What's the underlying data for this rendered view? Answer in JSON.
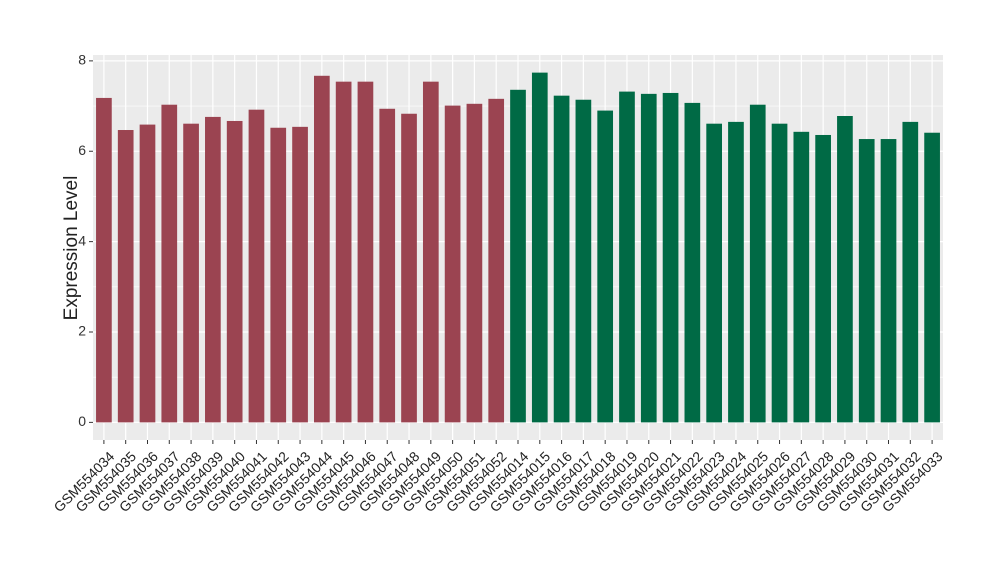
{
  "chart_data": {
    "type": "bar",
    "y_label": "Expression Level",
    "categories": [
      "GSM554034",
      "GSM554035",
      "GSM554036",
      "GSM554037",
      "GSM554038",
      "GSM554039",
      "GSM554040",
      "GSM554041",
      "GSM554042",
      "GSM554043",
      "GSM554044",
      "GSM554045",
      "GSM554046",
      "GSM554047",
      "GSM554048",
      "GSM554049",
      "GSM554050",
      "GSM554051",
      "GSM554052",
      "GSM554014",
      "GSM554015",
      "GSM554016",
      "GSM554017",
      "GSM554018",
      "GSM554019",
      "GSM554020",
      "GSM554021",
      "GSM554022",
      "GSM554023",
      "GSM554024",
      "GSM554025",
      "GSM554026",
      "GSM554027",
      "GSM554028",
      "GSM554029",
      "GSM554030",
      "GSM554031",
      "GSM554032",
      "GSM554033"
    ],
    "values": [
      7.18,
      6.47,
      6.59,
      7.03,
      6.61,
      6.76,
      6.67,
      6.92,
      6.52,
      6.54,
      7.67,
      7.54,
      7.54,
      6.94,
      6.83,
      7.54,
      7.01,
      7.05,
      7.16,
      7.36,
      7.74,
      7.23,
      7.14,
      6.9,
      7.32,
      7.27,
      7.29,
      7.07,
      6.61,
      6.65,
      7.03,
      6.61,
      6.43,
      6.36,
      6.78,
      6.27,
      6.27,
      6.65,
      6.41
    ],
    "colors": [
      "#9b4451",
      "#9b4451",
      "#9b4451",
      "#9b4451",
      "#9b4451",
      "#9b4451",
      "#9b4451",
      "#9b4451",
      "#9b4451",
      "#9b4451",
      "#9b4451",
      "#9b4451",
      "#9b4451",
      "#9b4451",
      "#9b4451",
      "#9b4451",
      "#9b4451",
      "#9b4451",
      "#9b4451",
      "#006a45",
      "#006a45",
      "#006a45",
      "#006a45",
      "#006a45",
      "#006a45",
      "#006a45",
      "#006a45",
      "#006a45",
      "#006a45",
      "#006a45",
      "#006a45",
      "#006a45",
      "#006a45",
      "#006a45",
      "#006a45",
      "#006a45",
      "#006a45",
      "#006a45",
      "#006a45"
    ],
    "ylim": [
      -0.39,
      8.13
    ],
    "yticks": [
      0,
      2,
      4,
      6,
      8
    ],
    "grid": true
  }
}
